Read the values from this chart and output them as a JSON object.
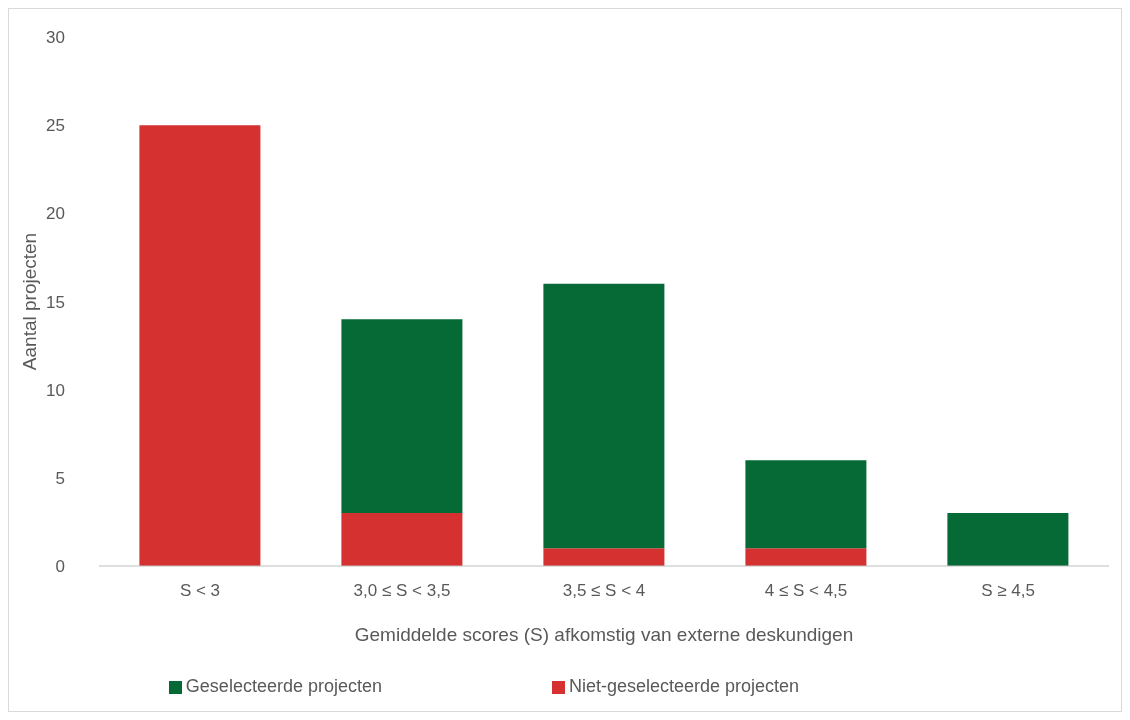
{
  "chart_data": {
    "type": "bar",
    "stacked": true,
    "xlabel": "Gemiddelde scores (S) afkomstig van externe deskundigen",
    "ylabel": "Aantal projecten",
    "categories": [
      "S < 3",
      "3,0 ≤ S < 3,5",
      "3,5 ≤ S < 4",
      "4 ≤ S < 4,5",
      "S ≥ 4,5"
    ],
    "series": [
      {
        "name": "Niet-geselecteerde projecten",
        "color": "#d43130",
        "values": [
          25,
          3,
          1,
          1,
          0
        ]
      },
      {
        "name": "Geselecteerde projecten",
        "color": "#056a35",
        "values": [
          0,
          11,
          15,
          5,
          3
        ]
      }
    ],
    "ylim": [
      0,
      30
    ],
    "yticks": [
      0,
      5,
      10,
      15,
      20,
      25,
      30
    ],
    "grid": false,
    "legend": "bottom"
  }
}
